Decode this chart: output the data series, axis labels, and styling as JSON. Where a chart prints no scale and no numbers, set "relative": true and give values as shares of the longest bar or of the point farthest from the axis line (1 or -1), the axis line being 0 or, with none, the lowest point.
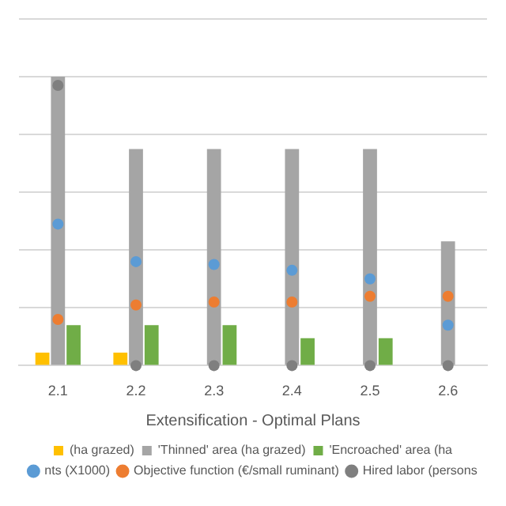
{
  "chart_data": {
    "type": "bar",
    "relative": true,
    "xlabel": "Extensification - Optimal Plans",
    "categories": [
      "2.1",
      "2.2",
      "2.3",
      "2.4",
      "2.5",
      "2.6"
    ],
    "grid": "y",
    "legend": "bottom",
    "series": [
      {
        "name": "(ha grazed)",
        "color": "#ffc000",
        "values": [
          0.045,
          0.045,
          null,
          null,
          null,
          null
        ]
      },
      {
        "name": "'Thinned' area (ha grazed)",
        "color": "#a5a5a5",
        "values": [
          1,
          0.75,
          0.75,
          0.75,
          0.75,
          0.43
        ]
      },
      {
        "name": "'Encroached' area (ha",
        "color": "#70ad47",
        "values": [
          0.14,
          0.14,
          0.14,
          0.095,
          0.095,
          null
        ]
      },
      {
        "name": "nts (X1000)",
        "type": "scatter",
        "marker": "circle",
        "color": "#5b9bd5",
        "values": [
          0.49,
          0.36,
          0.35,
          0.33,
          0.3,
          0.14
        ]
      },
      {
        "name": "Objective function (€/small ruminant)",
        "type": "scatter",
        "marker": "circle",
        "color": "#ed7d31",
        "values": [
          0.16,
          0.21,
          0.22,
          0.22,
          0.24,
          0.24
        ]
      },
      {
        "name": "Hired labor (persons",
        "type": "scatter",
        "marker": "circle",
        "color": "#7f7f7f",
        "values": [
          0.97,
          0,
          0,
          0,
          0,
          0
        ]
      }
    ]
  }
}
